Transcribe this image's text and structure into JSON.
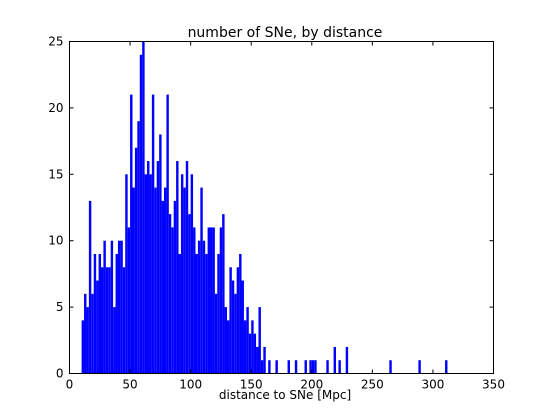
{
  "chart_data": {
    "type": "bar",
    "title": "number of SNe, by distance",
    "xlabel": "distance to SNe [Mpc]",
    "ylabel": "",
    "xlim": [
      0,
      350
    ],
    "ylim": [
      0,
      25
    ],
    "xticks": [
      0,
      50,
      100,
      150,
      200,
      250,
      300,
      350
    ],
    "yticks": [
      0,
      5,
      10,
      15,
      20,
      25
    ],
    "grid": false,
    "bar_color": "#0000ff",
    "bin_width": 2,
    "bins_start": [
      10,
      12,
      14,
      16,
      18,
      20,
      22,
      24,
      26,
      28,
      30,
      32,
      34,
      36,
      38,
      40,
      42,
      44,
      46,
      48,
      50,
      52,
      54,
      56,
      58,
      60,
      62,
      64,
      66,
      68,
      70,
      72,
      74,
      76,
      78,
      80,
      82,
      84,
      86,
      88,
      90,
      92,
      94,
      96,
      98,
      100,
      102,
      104,
      106,
      108,
      110,
      112,
      114,
      116,
      118,
      120,
      122,
      124,
      126,
      128,
      130,
      132,
      134,
      136,
      138,
      140,
      142,
      144,
      146,
      148,
      150,
      152,
      154,
      156,
      158,
      160,
      162,
      164,
      166,
      168,
      170,
      172,
      174,
      176,
      178,
      180,
      182,
      184,
      186,
      188,
      190,
      192,
      194,
      196,
      198,
      200,
      202,
      204,
      206,
      208,
      210,
      212,
      214,
      216,
      218,
      220,
      222,
      224,
      226,
      228,
      230,
      232,
      234,
      236,
      238,
      240,
      242,
      244,
      246,
      248,
      250,
      252,
      254,
      256,
      258,
      260,
      262,
      264,
      266,
      268,
      270,
      272,
      274,
      276,
      278,
      280,
      282,
      284,
      286,
      288,
      290,
      292,
      294,
      296,
      298,
      300,
      302,
      304,
      306,
      308,
      310,
      312
    ],
    "counts": [
      4,
      6,
      5,
      13,
      6,
      9,
      7,
      9,
      8,
      10,
      8,
      8,
      10,
      5,
      9,
      10,
      10,
      8,
      15,
      11,
      21,
      14,
      17,
      19,
      24,
      25,
      15,
      16,
      15,
      21,
      14,
      16,
      18,
      13,
      14,
      21,
      12,
      11,
      13,
      16,
      9,
      15,
      14,
      16,
      12,
      15,
      11,
      9,
      10,
      14,
      10,
      9,
      11,
      11,
      11,
      6,
      9,
      11,
      12,
      5,
      4,
      8,
      7,
      6,
      8,
      9,
      7,
      4,
      5,
      3,
      4,
      3,
      2,
      5,
      1,
      2,
      0,
      1,
      0,
      0,
      1,
      0,
      0,
      0,
      0,
      1,
      0,
      0,
      1,
      0,
      0,
      0,
      1,
      0,
      1,
      1,
      1,
      0,
      0,
      0,
      0,
      1,
      0,
      0,
      2,
      0,
      1,
      0,
      0,
      2,
      0,
      0,
      0,
      0,
      0,
      0,
      0,
      0,
      0,
      0,
      0,
      0,
      0,
      0,
      0,
      0,
      0,
      1,
      0,
      0,
      0,
      0,
      0,
      0,
      0,
      0,
      0,
      0,
      0,
      1,
      0,
      0,
      0,
      0,
      0,
      0,
      0,
      0,
      0,
      0,
      1,
      0
    ]
  }
}
